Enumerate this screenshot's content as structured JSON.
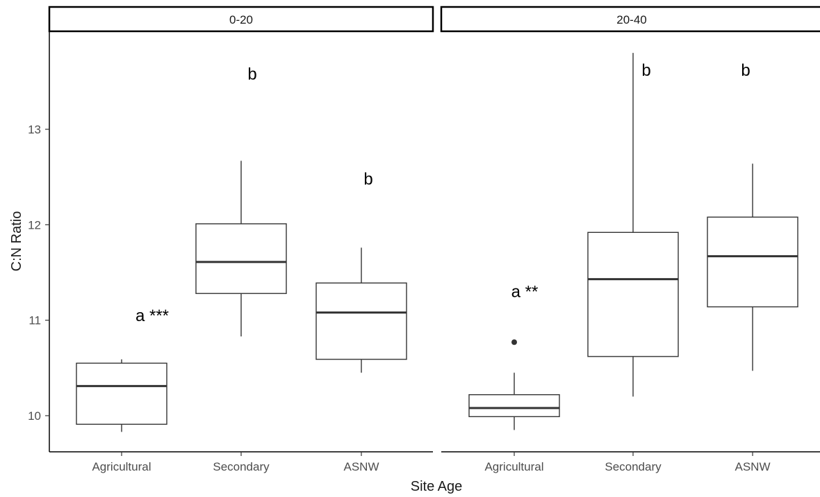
{
  "chart_data": {
    "type": "boxplot",
    "xlabel": "Site Age",
    "ylabel": "C:N Ratio",
    "ylim": [
      9.65,
      13.95
    ],
    "y_ticks": [
      10,
      11,
      12,
      13
    ],
    "categories": [
      "Agricultural",
      "Secondary",
      "ASNW"
    ],
    "grid": false,
    "panels": [
      {
        "facet": "0-20",
        "boxes": [
          {
            "category": "Agricultural",
            "whisker_low": 9.83,
            "q1": 9.91,
            "median": 10.31,
            "q3": 10.55,
            "whisker_high": 10.59,
            "outliers": []
          },
          {
            "category": "Secondary",
            "whisker_low": 10.83,
            "q1": 11.28,
            "median": 11.61,
            "q3": 12.01,
            "whisker_high": 12.67,
            "outliers": []
          },
          {
            "category": "ASNW",
            "whisker_low": 10.45,
            "q1": 10.59,
            "median": 11.08,
            "q3": 11.39,
            "whisker_high": 11.76,
            "outliers": []
          }
        ],
        "annotations": [
          {
            "category": "Agricultural",
            "text": "a ***",
            "y": 11.05
          },
          {
            "category": "Secondary",
            "text": "b",
            "y": 13.58
          },
          {
            "category": "ASNW",
            "text": "b",
            "y": 12.48
          }
        ]
      },
      {
        "facet": "20-40",
        "boxes": [
          {
            "category": "Agricultural",
            "whisker_low": 9.85,
            "q1": 9.99,
            "median": 10.08,
            "q3": 10.22,
            "whisker_high": 10.45,
            "outliers": [
              10.77
            ]
          },
          {
            "category": "Secondary",
            "whisker_low": 10.2,
            "q1": 10.62,
            "median": 11.43,
            "q3": 11.92,
            "whisker_high": 13.8,
            "outliers": []
          },
          {
            "category": "ASNW",
            "whisker_low": 10.47,
            "q1": 11.14,
            "median": 11.67,
            "q3": 12.08,
            "whisker_high": 12.64,
            "outliers": []
          }
        ],
        "annotations": [
          {
            "category": "Agricultural",
            "text": "a **",
            "y": 11.3
          },
          {
            "category": "Secondary",
            "text": "b",
            "y": 13.62
          },
          {
            "category": "ASNW",
            "text": "b",
            "y": 13.62
          }
        ]
      }
    ]
  }
}
